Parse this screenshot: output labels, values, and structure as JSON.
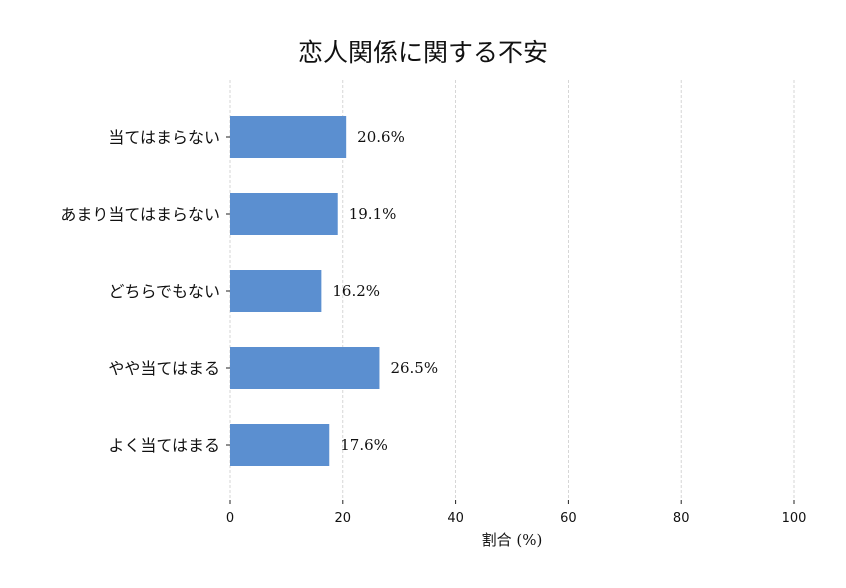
{
  "chart_data": {
    "type": "bar",
    "orientation": "horizontal",
    "title": "恋人関係に関する不安",
    "xlabel": "割合 (%)",
    "ylabel": "",
    "categories": [
      "当てはまらない",
      "あまり当てはまらない",
      "どちらでもない",
      "やや当てはまる",
      "よく当てはまる"
    ],
    "values": [
      20.6,
      19.1,
      16.2,
      26.5,
      17.6
    ],
    "data_labels": [
      "20.6%",
      "19.1%",
      "16.2%",
      "26.5%",
      "17.6%"
    ],
    "xlim": [
      0,
      100
    ],
    "xticks": [
      0,
      20,
      40,
      60,
      80,
      100
    ],
    "xtick_labels": [
      "0",
      "20",
      "40",
      "60",
      "80",
      "100"
    ],
    "grid": "x dashed",
    "bar_color": "#5b8fd0"
  }
}
